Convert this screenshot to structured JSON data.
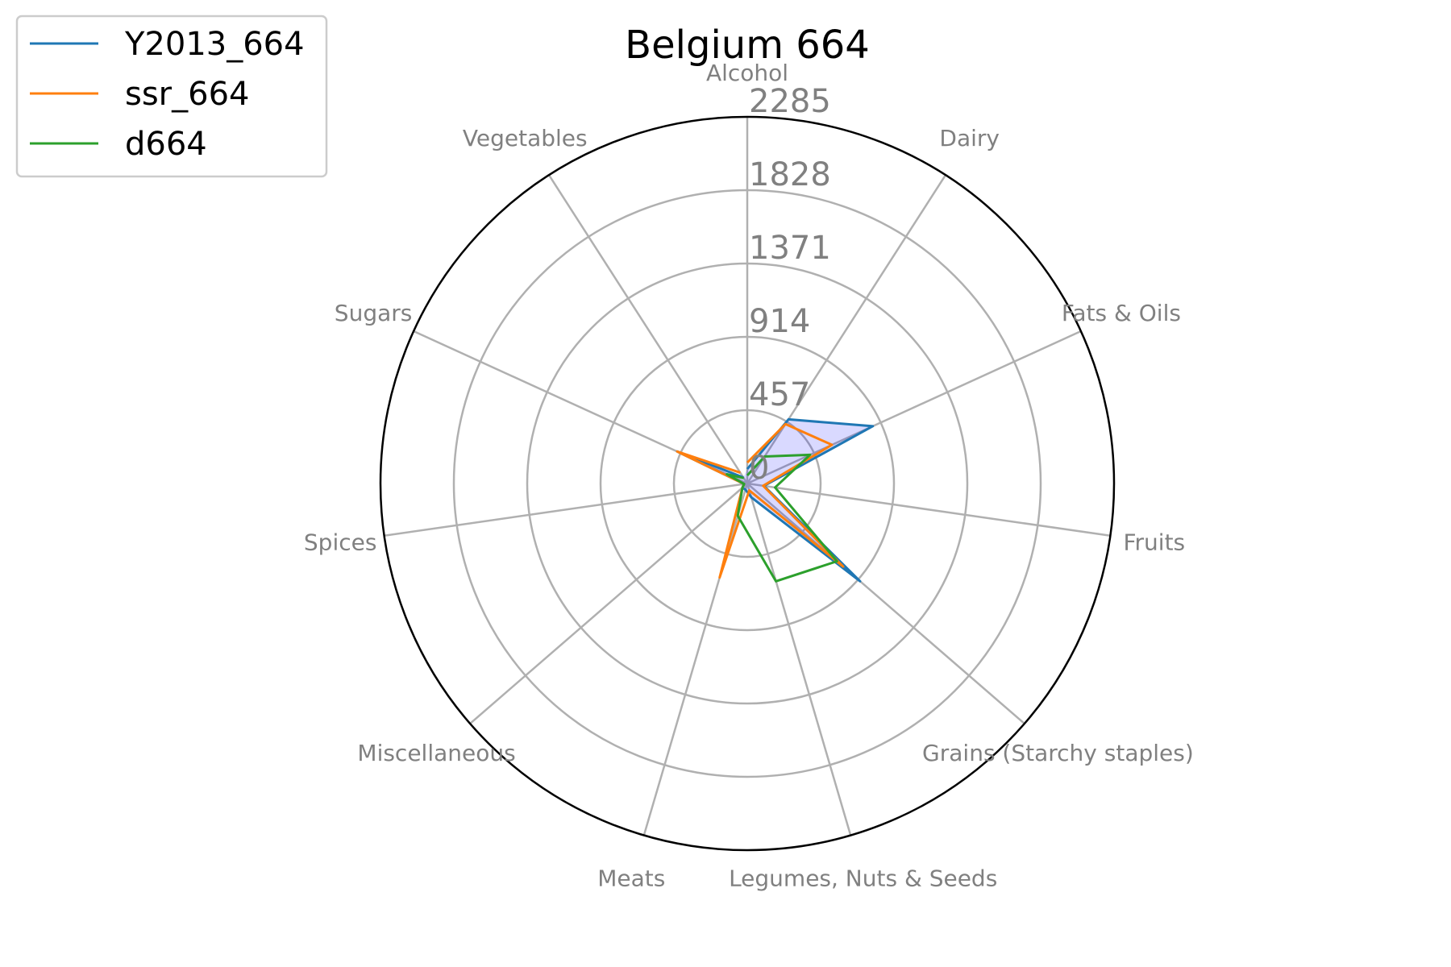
{
  "chart_data": {
    "type": "radar",
    "title": "Belgium 664",
    "categories": [
      "Alcohol",
      "Dairy",
      "Fats & Oils",
      "Fruits",
      "Grains (Starchy staples)",
      "Legumes, Nuts & Seeds",
      "Meats",
      "Miscellaneous",
      "Spices",
      "Sugars",
      "Vegetables"
    ],
    "rlim": [
      0,
      2285
    ],
    "rticks": [
      0,
      457,
      914,
      1371,
      1828,
      2285
    ],
    "rtick_labels": [
      "0",
      "457",
      "914",
      "1371",
      "1828",
      "2285"
    ],
    "grid": true,
    "legend_position": "top-left",
    "series": [
      {
        "name": "Y2013_664",
        "color": "#1f77b4",
        "values": [
          90,
          475,
          860,
          105,
          930,
          90,
          40,
          40,
          20,
          480,
          45
        ]
      },
      {
        "name": "ssr_664",
        "color": "#ff7f0e",
        "values": [
          130,
          440,
          580,
          100,
          790,
          45,
          610,
          40,
          20,
          480,
          80
        ]
      },
      {
        "name": "d664",
        "color": "#2ca02c",
        "values": [
          50,
          200,
          430,
          175,
          740,
          635,
          210,
          40,
          20,
          140,
          40
        ]
      }
    ],
    "fill": {
      "series": "Y2013_664",
      "color": "#0000ff",
      "opacity": 0.15
    }
  }
}
